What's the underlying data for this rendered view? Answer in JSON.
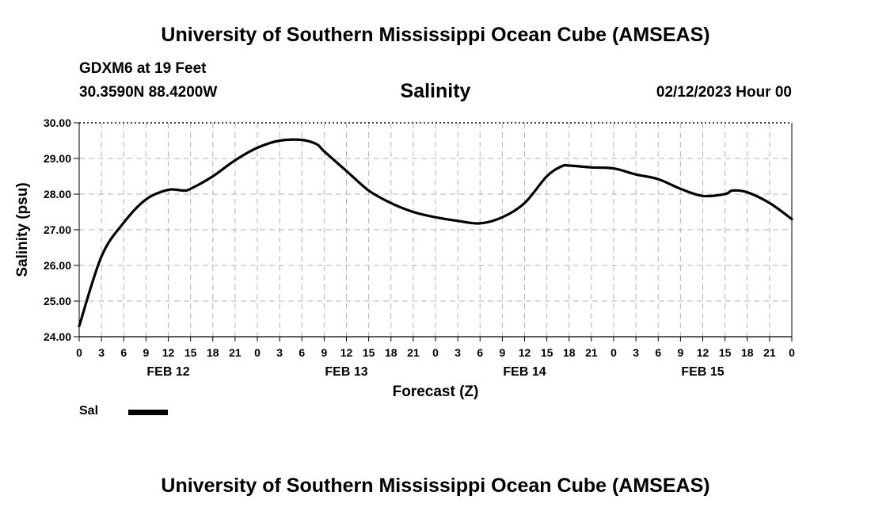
{
  "header": {
    "title": "University of Southern Mississippi Ocean Cube (AMSEAS)",
    "station": "GDXM6 at 19 Feet",
    "coords": "30.3590N  88.4200W",
    "run_time": "02/12/2023 Hour 00"
  },
  "footer": {
    "title": "University of Southern Mississippi Ocean Cube (AMSEAS)"
  },
  "legend": {
    "label": "Sal",
    "color": "#000000"
  },
  "chart_data": {
    "type": "line",
    "title": "Salinity",
    "xlabel": "Forecast (Z)",
    "ylabel": "Salinity (psu)",
    "ylim": [
      24.0,
      30.0
    ],
    "xlim": [
      0,
      96
    ],
    "grid": true,
    "y_ticks": [
      "24.00",
      "25.00",
      "26.00",
      "27.00",
      "28.00",
      "29.00",
      "30.00"
    ],
    "x_tick_labels": [
      "0",
      "3",
      "6",
      "9",
      "12",
      "15",
      "18",
      "21",
      "0",
      "3",
      "6",
      "9",
      "12",
      "15",
      "18",
      "21",
      "0",
      "3",
      "6",
      "9",
      "12",
      "15",
      "18",
      "21",
      "0",
      "3",
      "6",
      "9",
      "12",
      "15",
      "18",
      "21",
      "0"
    ],
    "day_labels": [
      {
        "hour": 12,
        "label": "FEB 12"
      },
      {
        "hour": 36,
        "label": "FEB 13"
      },
      {
        "hour": 60,
        "label": "FEB 14"
      },
      {
        "hour": 84,
        "label": "FEB 15"
      }
    ],
    "series": [
      {
        "name": "Sal",
        "x": [
          0,
          3,
          6,
          9,
          12,
          14,
          15,
          18,
          21,
          24,
          27,
          30,
          32,
          33,
          36,
          39,
          42,
          45,
          48,
          51,
          54,
          57,
          60,
          63,
          65,
          66,
          69,
          72,
          75,
          78,
          81,
          84,
          87,
          88,
          90,
          93,
          96
        ],
        "values": [
          24.3,
          26.25,
          27.2,
          27.85,
          28.12,
          28.1,
          28.15,
          28.5,
          28.95,
          29.3,
          29.5,
          29.52,
          29.4,
          29.2,
          28.65,
          28.1,
          27.75,
          27.5,
          27.35,
          27.25,
          27.18,
          27.35,
          27.75,
          28.5,
          28.78,
          28.8,
          28.75,
          28.72,
          28.55,
          28.42,
          28.15,
          27.95,
          28.0,
          28.1,
          28.05,
          27.75,
          27.3
        ]
      }
    ]
  }
}
